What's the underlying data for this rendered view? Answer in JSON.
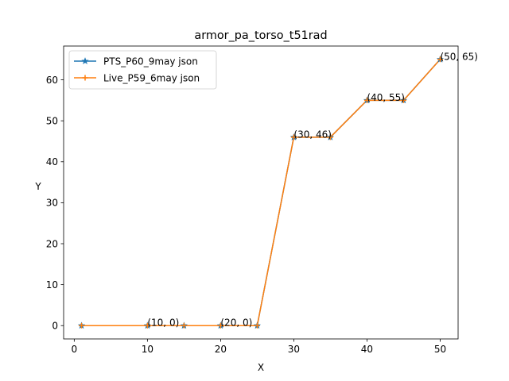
{
  "chart_data": {
    "type": "line",
    "title": "armor_pa_torso_t51rad",
    "xlabel": "X",
    "ylabel": "Y",
    "xlim": [
      -1.45,
      52.45
    ],
    "ylim": [
      -3.25,
      68.25
    ],
    "xticks": [
      0,
      10,
      20,
      30,
      40,
      50
    ],
    "yticks": [
      0,
      10,
      20,
      30,
      40,
      50,
      60
    ],
    "x": [
      1,
      10,
      15,
      20,
      25,
      30,
      35,
      40,
      45,
      50
    ],
    "series": [
      {
        "name": "PTS_P60_9may json",
        "values": [
          0,
          0,
          0,
          0,
          0,
          46,
          46,
          55,
          55,
          65
        ],
        "color": "#1f77b4",
        "marker": "star"
      },
      {
        "name": "Live_P59_6may json",
        "values": [
          0,
          0,
          0,
          0,
          0,
          46,
          46,
          55,
          55,
          65
        ],
        "color": "#ff7f0e",
        "marker": "plus"
      }
    ],
    "annotations": [
      {
        "text": "(10, 0)",
        "x": 10,
        "y": 0
      },
      {
        "text": "(20, 0)",
        "x": 20,
        "y": 0
      },
      {
        "text": "(30, 46)",
        "x": 30,
        "y": 46
      },
      {
        "text": "(40, 55)",
        "x": 40,
        "y": 55
      },
      {
        "text": "(50, 65)",
        "x": 50,
        "y": 65
      }
    ],
    "grid": false,
    "legend_position": "top-left"
  }
}
